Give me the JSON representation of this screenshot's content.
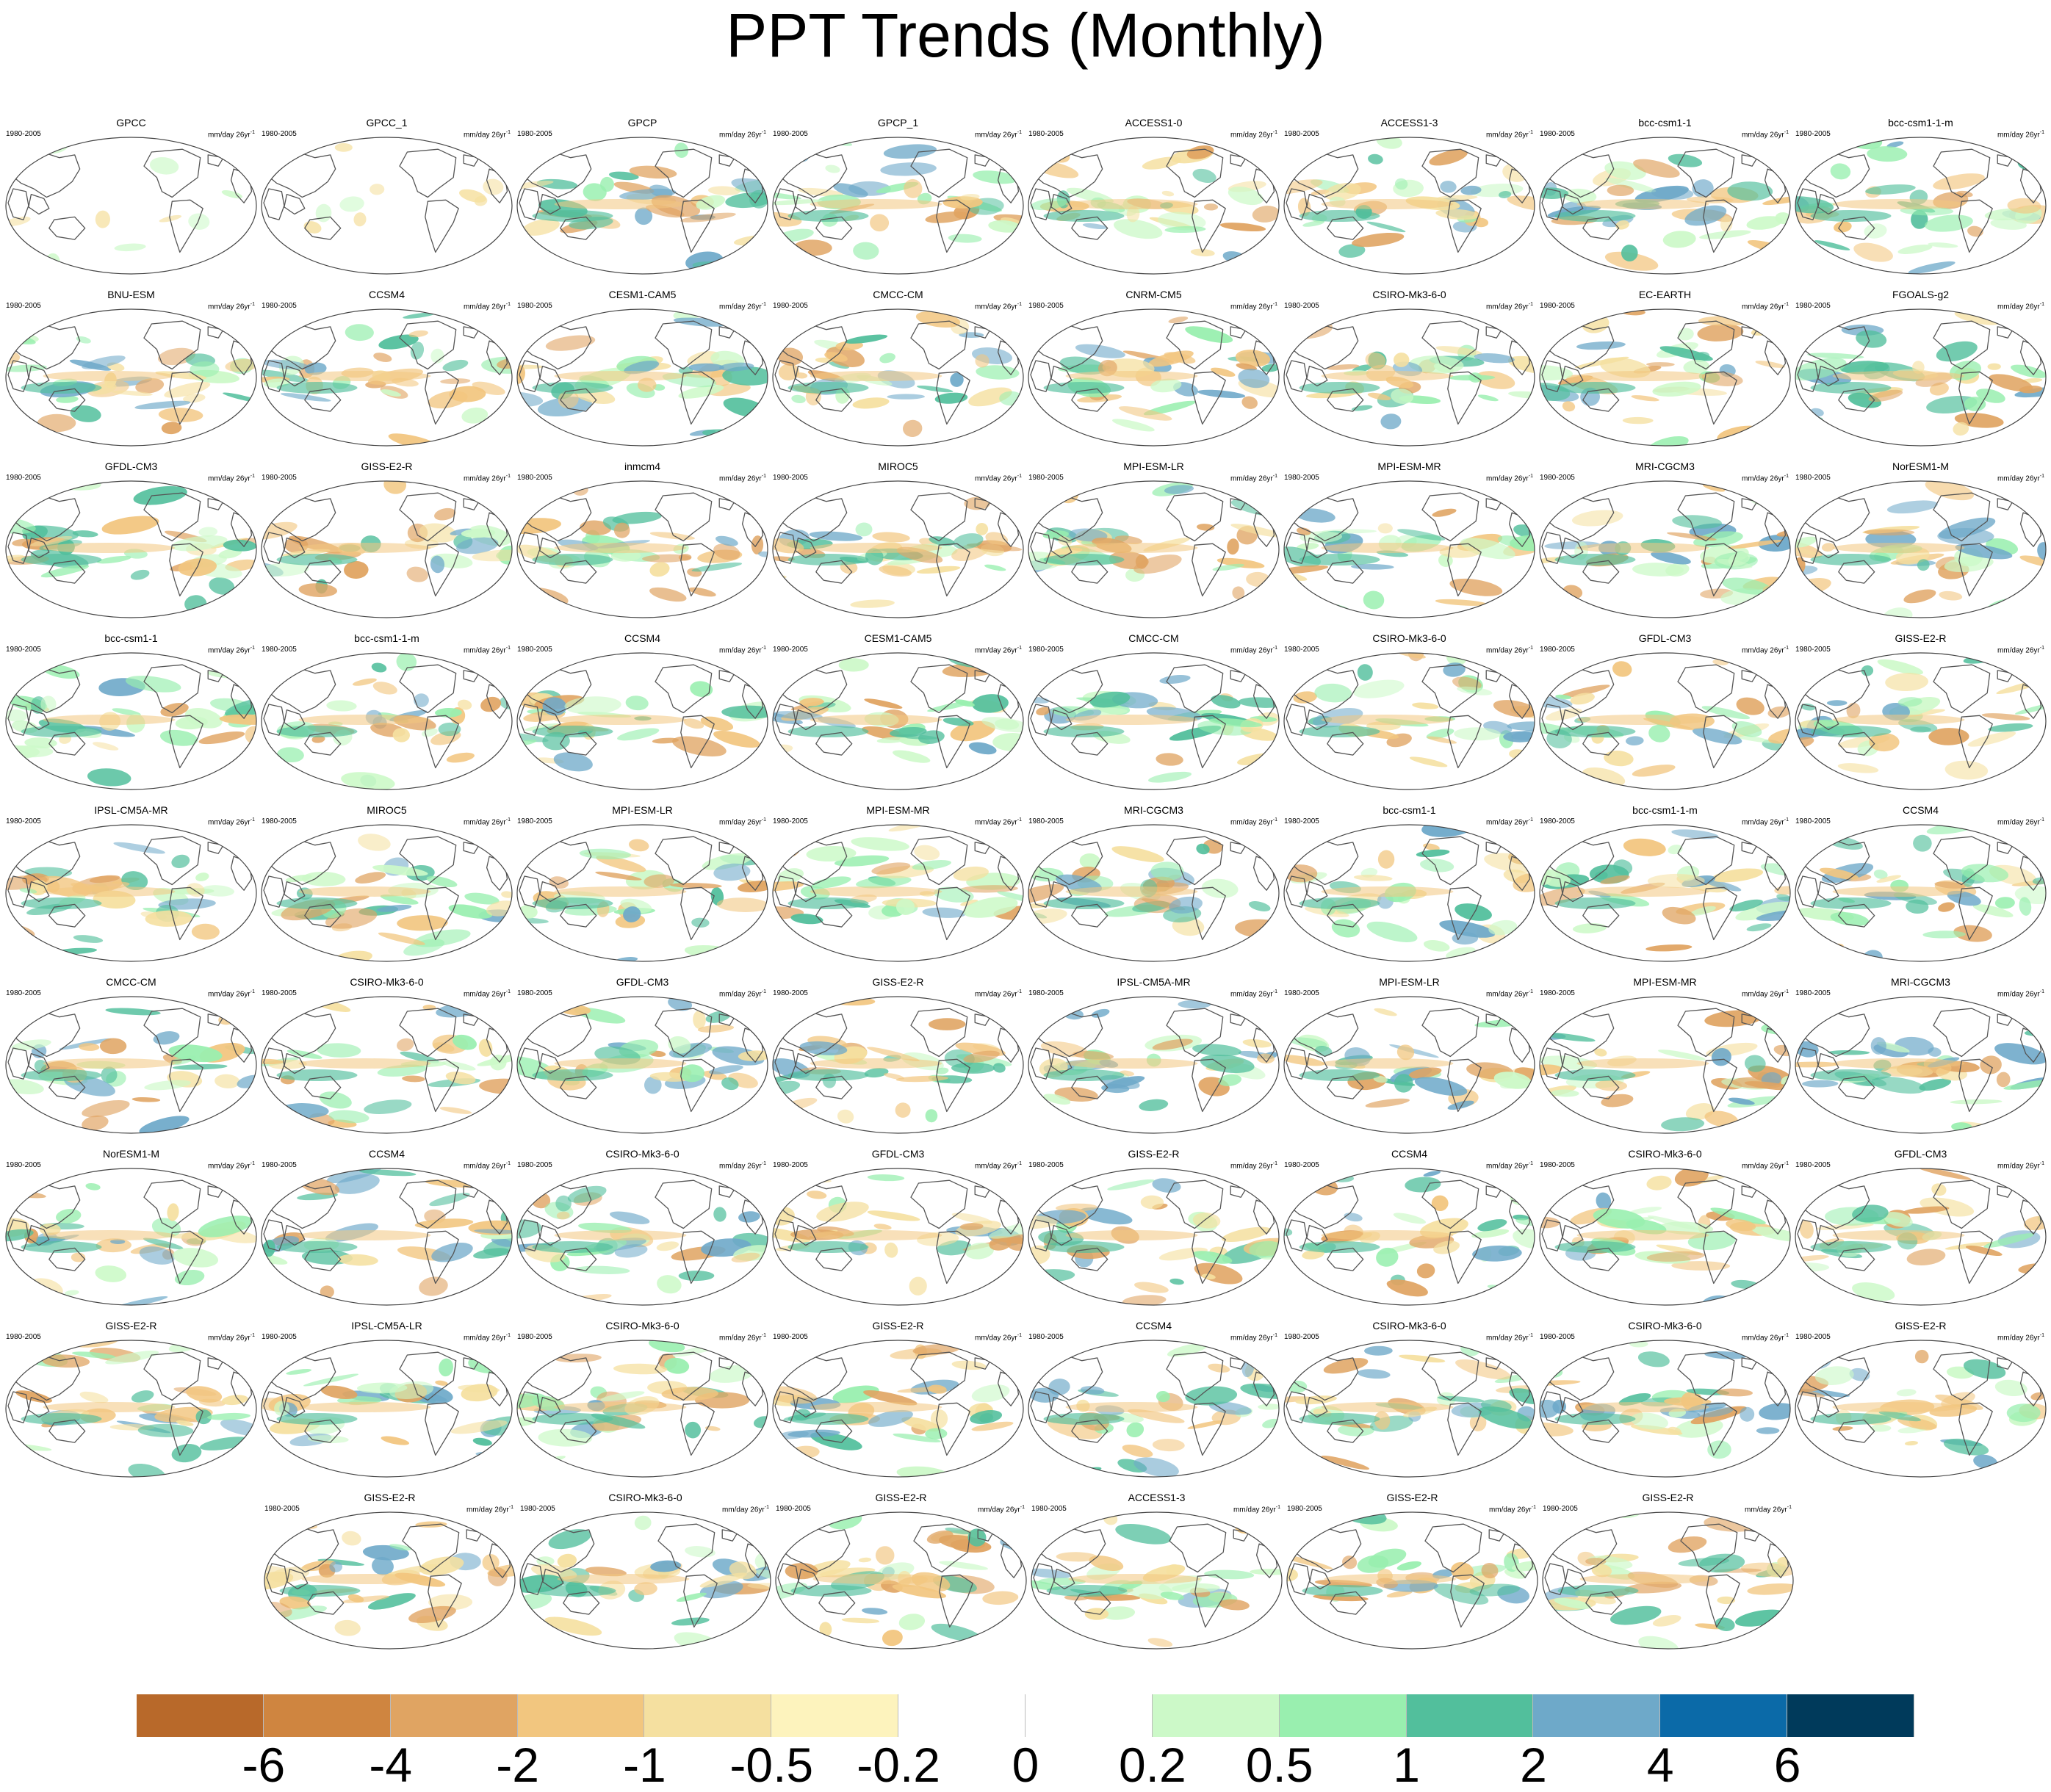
{
  "title": "PPT Trends (Monthly)",
  "period_label": "1980-2005",
  "units_base": "mm/day 26yr",
  "units_sup": "-1",
  "panels": [
    "GPCC",
    "GPCC_1",
    "GPCP",
    "GPCP_1",
    "ACCESS1-0",
    "ACCESS1-3",
    "bcc-csm1-1",
    "bcc-csm1-1-m",
    "BNU-ESM",
    "CCSM4",
    "CESM1-CAM5",
    "CMCC-CM",
    "CNRM-CM5",
    "CSIRO-Mk3-6-0",
    "EC-EARTH",
    "FGOALS-g2",
    "GFDL-CM3",
    "GISS-E2-R",
    "inmcm4",
    "MIROC5",
    "MPI-ESM-LR",
    "MPI-ESM-MR",
    "MRI-CGCM3",
    "NorESM1-M",
    "bcc-csm1-1",
    "bcc-csm1-1-m",
    "CCSM4",
    "CESM1-CAM5",
    "CMCC-CM",
    "CSIRO-Mk3-6-0",
    "GFDL-CM3",
    "GISS-E2-R",
    "IPSL-CM5A-MR",
    "MIROC5",
    "MPI-ESM-LR",
    "MPI-ESM-MR",
    "MRI-CGCM3",
    "bcc-csm1-1",
    "bcc-csm1-1-m",
    "CCSM4",
    "CMCC-CM",
    "CSIRO-Mk3-6-0",
    "GFDL-CM3",
    "GISS-E2-R",
    "IPSL-CM5A-MR",
    "MPI-ESM-LR",
    "MPI-ESM-MR",
    "MRI-CGCM3",
    "NorESM1-M",
    "CCSM4",
    "CSIRO-Mk3-6-0",
    "GFDL-CM3",
    "GISS-E2-R",
    "CCSM4",
    "CSIRO-Mk3-6-0",
    "GFDL-CM3",
    "GISS-E2-R",
    "IPSL-CM5A-LR",
    "CSIRO-Mk3-6-0",
    "GISS-E2-R",
    "CCSM4",
    "CSIRO-Mk3-6-0",
    "CSIRO-Mk3-6-0",
    "GISS-E2-R",
    "GISS-E2-R",
    "CSIRO-Mk3-6-0",
    "GISS-E2-R",
    "ACCESS1-3",
    "GISS-E2-R",
    "GISS-E2-R"
  ],
  "colorbar": {
    "colors": [
      "#b8692a",
      "#cf8540",
      "#e0a462",
      "#f2c67f",
      "#f5e0a0",
      "#fdf3bd",
      "#ffffff",
      "#ffffff",
      "#ccf9c8",
      "#99efaf",
      "#52bf9c",
      "#6ea9c9",
      "#0b6aa8",
      "#003a5b"
    ],
    "labels": [
      "-6",
      "-4",
      "-2",
      "-1",
      "-0.5",
      "-0.2",
      "0",
      "0.2",
      "0.5",
      "1",
      "2",
      "4",
      "6"
    ]
  }
}
